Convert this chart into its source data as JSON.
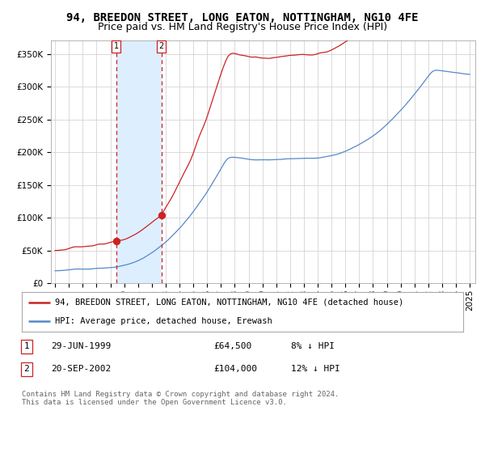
{
  "title": "94, BREEDON STREET, LONG EATON, NOTTINGHAM, NG10 4FE",
  "subtitle": "Price paid vs. HM Land Registry's House Price Index (HPI)",
  "ylim": [
    0,
    370000
  ],
  "yticks": [
    0,
    50000,
    100000,
    150000,
    200000,
    250000,
    300000,
    350000
  ],
  "ytick_labels": [
    "£0",
    "£50K",
    "£100K",
    "£150K",
    "£200K",
    "£250K",
    "£300K",
    "£350K"
  ],
  "background_color": "#ffffff",
  "plot_bg_color": "#ffffff",
  "grid_color": "#cccccc",
  "hpi_line_color": "#5588cc",
  "price_line_color": "#cc2222",
  "vline_color": "#cc2222",
  "vspan_color": "#ddeeff",
  "purchase1_date": 1999.46,
  "purchase1_price": 64500,
  "purchase2_date": 2002.71,
  "purchase2_price": 104000,
  "legend_label_price": "94, BREEDON STREET, LONG EATON, NOTTINGHAM, NG10 4FE (detached house)",
  "legend_label_hpi": "HPI: Average price, detached house, Erewash",
  "table_row1": [
    "1",
    "29-JUN-1999",
    "£64,500",
    "8% ↓ HPI"
  ],
  "table_row2": [
    "2",
    "20-SEP-2002",
    "£104,000",
    "12% ↓ HPI"
  ],
  "footnote": "Contains HM Land Registry data © Crown copyright and database right 2024.\nThis data is licensed under the Open Government Licence v3.0.",
  "title_fontsize": 10,
  "subtitle_fontsize": 9,
  "tick_fontsize": 7.5
}
